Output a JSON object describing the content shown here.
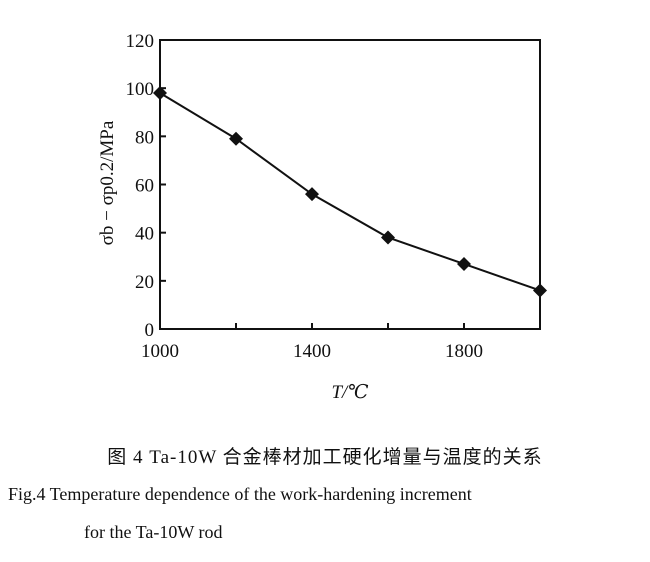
{
  "chart_data": {
    "type": "line",
    "x": [
      1000,
      1200,
      1400,
      1600,
      1800,
      2000
    ],
    "y": [
      98,
      79,
      56,
      38,
      27,
      16
    ],
    "xlim": [
      1000,
      2000
    ],
    "ylim": [
      0,
      120
    ],
    "x_ticks": [
      1000,
      1200,
      1400,
      1600,
      1800,
      2000
    ],
    "x_tick_labels": [
      "1000",
      "",
      "1400",
      "",
      "1800",
      ""
    ],
    "y_ticks": [
      0,
      20,
      40,
      60,
      80,
      100,
      120
    ],
    "y_tick_labels": [
      "0",
      "20",
      "40",
      "60",
      "80",
      "100",
      "120"
    ],
    "xlabel": "T/℃",
    "ylabel": "σb − σp0.2/MPa",
    "marker": "diamond",
    "grid": false,
    "line_color": "#111111"
  },
  "caption": {
    "chinese": "图 4   Ta-10W 合金棒材加工硬化增量与温度的关系",
    "english_line1": "Fig.4    Temperature dependence of the work-hardening increment",
    "english_line2": "for the Ta-10W rod"
  }
}
